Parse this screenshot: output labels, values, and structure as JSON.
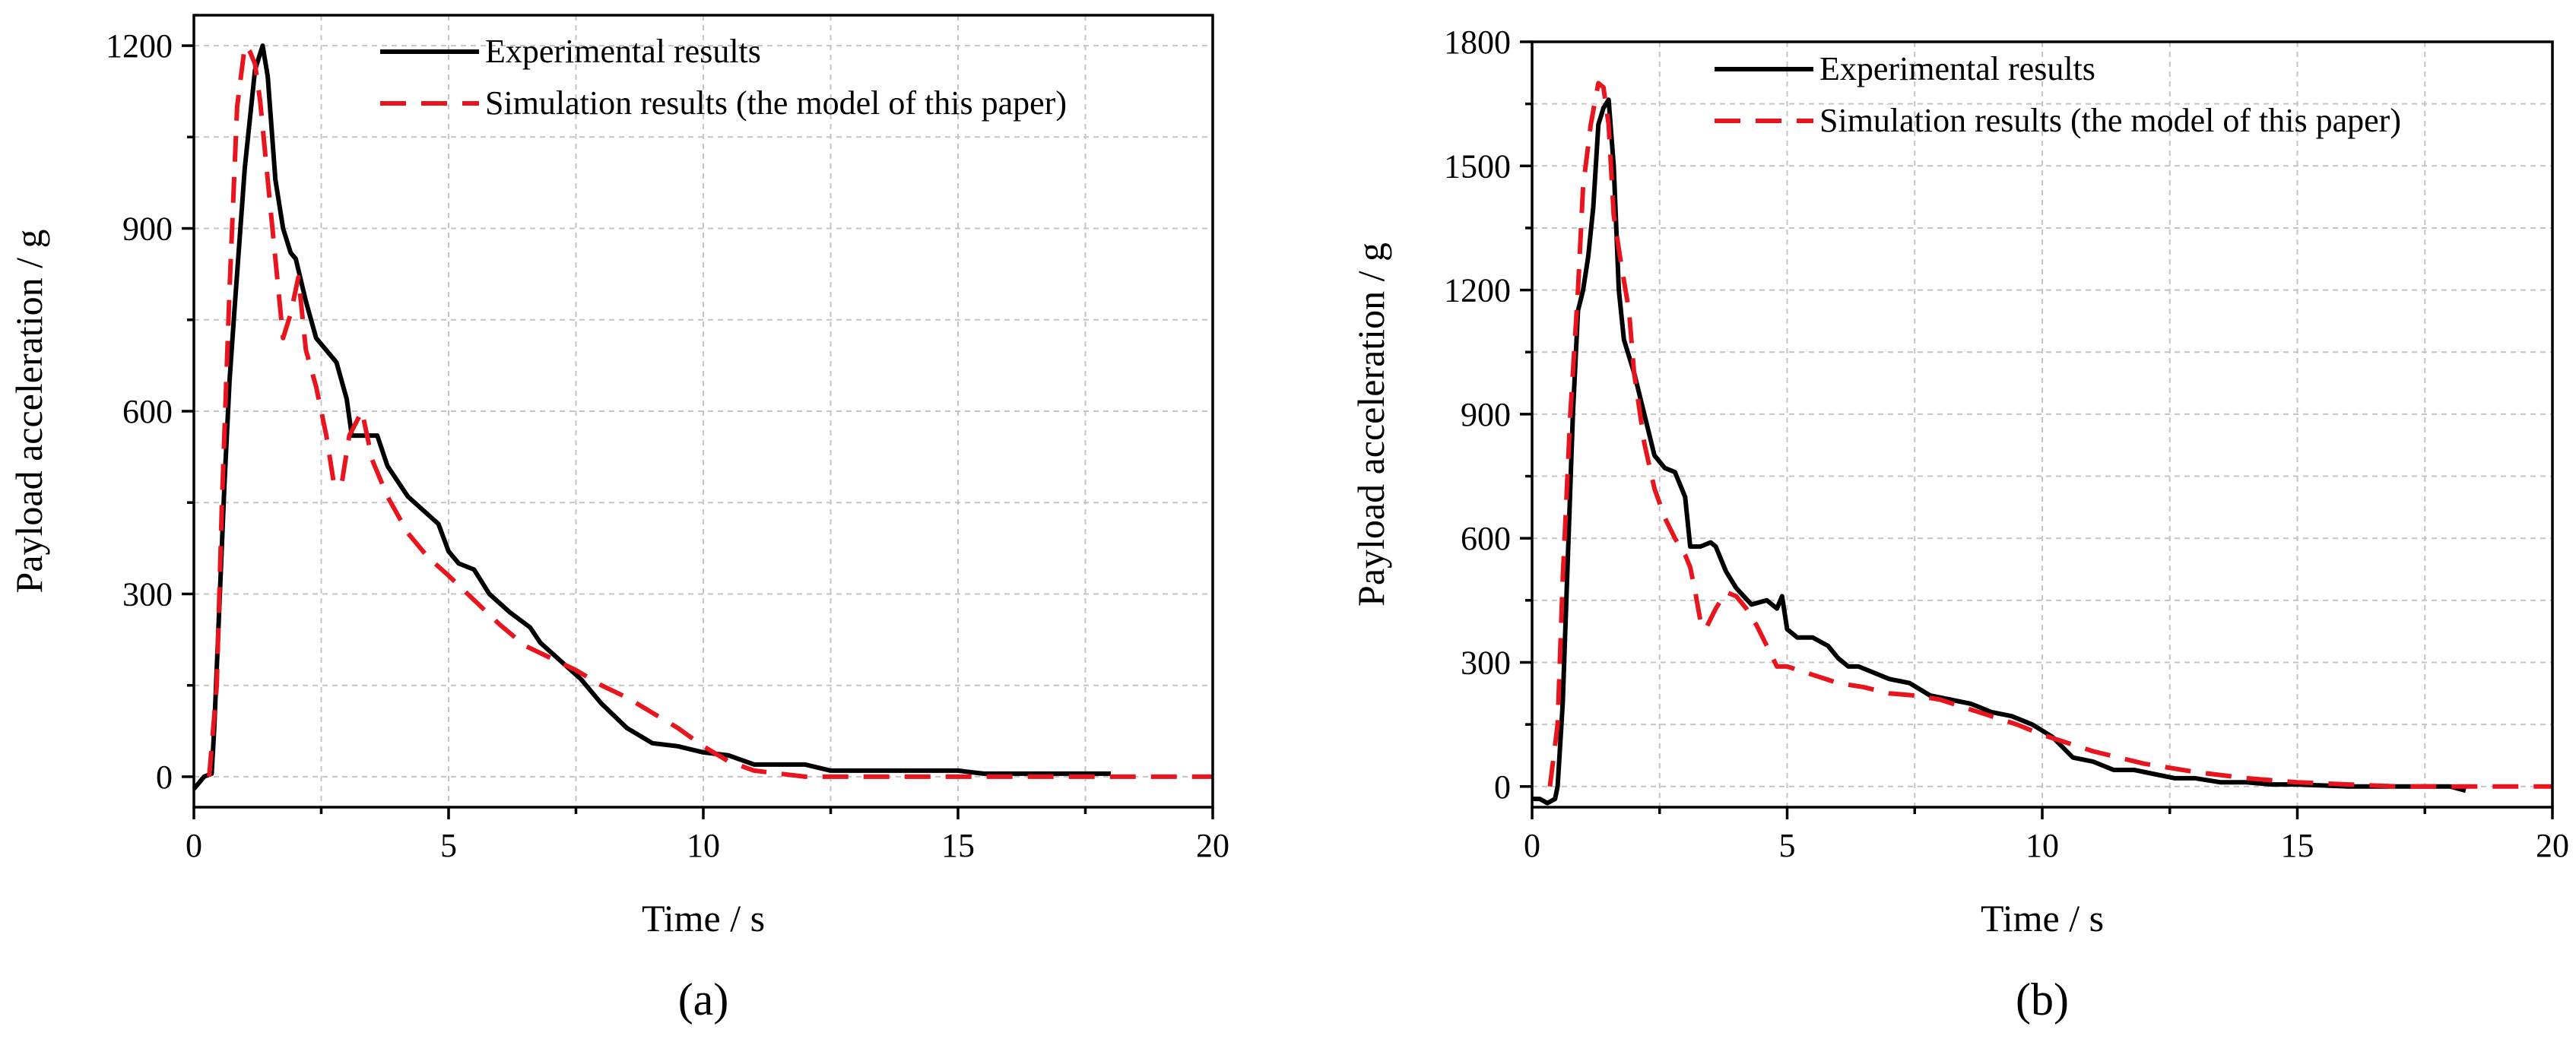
{
  "colors": {
    "experimental": "#000000",
    "simulation": "#e8141e",
    "grid": "#c4c4c4"
  },
  "chart_data": [
    {
      "type": "line",
      "panel_label": "(a)",
      "xlabel": "Time / s",
      "ylabel": "Payload acceleration / g",
      "xlim": [
        0,
        20
      ],
      "ylim": [
        -50,
        1250
      ],
      "xticks": [
        0,
        5,
        10,
        15,
        20
      ],
      "yticks": [
        0,
        300,
        600,
        900,
        1200
      ],
      "grid": true,
      "legend_position": "top-right",
      "series": [
        {
          "name": "Experimental results",
          "style": "solid",
          "color": "#000000",
          "x": [
            0,
            0.2,
            0.35,
            0.4,
            0.5,
            0.6,
            0.7,
            0.8,
            1.0,
            1.2,
            1.35,
            1.45,
            1.6,
            1.75,
            1.9,
            2.0,
            2.2,
            2.4,
            2.6,
            2.8,
            3.0,
            3.1,
            3.3,
            3.6,
            3.8,
            4.2,
            4.6,
            4.8,
            5.0,
            5.2,
            5.5,
            5.8,
            6.2,
            6.6,
            6.8,
            7.2,
            7.6,
            8.0,
            8.5,
            9.0,
            9.5,
            10.0,
            10.5,
            11.0,
            11.3,
            11.6,
            12.0,
            12.5,
            13.0,
            13.5,
            14.0,
            14.5,
            15.0,
            15.5,
            16.0,
            17.0,
            18.0
          ],
          "y": [
            -20,
            0,
            5,
            80,
            280,
            480,
            650,
            770,
            1000,
            1160,
            1200,
            1150,
            980,
            900,
            860,
            850,
            780,
            720,
            700,
            680,
            620,
            560,
            560,
            560,
            510,
            460,
            430,
            415,
            370,
            350,
            340,
            300,
            270,
            245,
            220,
            190,
            160,
            120,
            80,
            55,
            50,
            40,
            35,
            20,
            20,
            20,
            20,
            10,
            10,
            10,
            10,
            10,
            10,
            5,
            5,
            5,
            5
          ]
        },
        {
          "name": "Simulation results (the model of this paper)",
          "style": "dashed",
          "color": "#e8141e",
          "x": [
            0.3,
            0.45,
            0.55,
            0.7,
            0.85,
            1.0,
            1.1,
            1.2,
            1.3,
            1.45,
            1.6,
            1.75,
            1.9,
            2.05,
            2.2,
            2.4,
            2.6,
            2.75,
            2.9,
            3.05,
            3.3,
            3.5,
            3.8,
            4.2,
            4.6,
            5.0,
            5.5,
            6.0,
            6.5,
            7.0,
            7.5,
            8.0,
            8.5,
            9.0,
            9.5,
            10.0,
            10.5,
            11.0,
            11.5,
            12.0,
            13.0,
            14.0,
            15.0,
            16.0,
            17.0,
            18.0,
            19.0,
            20.0
          ],
          "y": [
            0,
            150,
            450,
            800,
            1100,
            1200,
            1190,
            1170,
            1110,
            980,
            850,
            720,
            760,
            820,
            700,
            640,
            560,
            480,
            480,
            560,
            600,
            520,
            460,
            400,
            360,
            330,
            290,
            250,
            215,
            195,
            175,
            150,
            130,
            105,
            80,
            50,
            25,
            10,
            5,
            0,
            0,
            0,
            0,
            0,
            0,
            0,
            0,
            0
          ]
        }
      ]
    },
    {
      "type": "line",
      "panel_label": "(b)",
      "xlabel": "Time / s",
      "ylabel": "Payload acceleration / g",
      "xlim": [
        0,
        20
      ],
      "ylim": [
        -50,
        1800
      ],
      "xticks": [
        0,
        5,
        10,
        15,
        20
      ],
      "yticks": [
        0,
        300,
        600,
        900,
        1200,
        1500,
        1800
      ],
      "grid": true,
      "legend_position": "top-right",
      "series": [
        {
          "name": "Experimental results",
          "style": "solid",
          "color": "#000000",
          "x": [
            0,
            0.15,
            0.3,
            0.45,
            0.5,
            0.6,
            0.7,
            0.8,
            0.9,
            1.0,
            1.1,
            1.2,
            1.3,
            1.4,
            1.5,
            1.6,
            1.7,
            1.8,
            2.0,
            2.2,
            2.4,
            2.6,
            2.8,
            3.0,
            3.1,
            3.3,
            3.5,
            3.6,
            3.8,
            4.0,
            4.3,
            4.6,
            4.8,
            4.9,
            5.0,
            5.2,
            5.5,
            5.8,
            6.0,
            6.2,
            6.4,
            6.6,
            7.0,
            7.4,
            7.8,
            8.2,
            8.6,
            9.0,
            9.4,
            9.8,
            10.2,
            10.6,
            11.0,
            11.4,
            11.8,
            12.2,
            12.6,
            13.0,
            13.5,
            14.0,
            14.5,
            15.0,
            16.0,
            17.0,
            18.0,
            18.3
          ],
          "y": [
            -30,
            -30,
            -40,
            -30,
            0,
            200,
            550,
            900,
            1150,
            1200,
            1280,
            1400,
            1600,
            1640,
            1660,
            1500,
            1200,
            1080,
            1000,
            900,
            800,
            770,
            760,
            700,
            580,
            580,
            590,
            580,
            520,
            480,
            440,
            450,
            430,
            460,
            380,
            360,
            360,
            340,
            310,
            290,
            290,
            280,
            260,
            250,
            220,
            210,
            200,
            180,
            170,
            150,
            120,
            70,
            60,
            40,
            40,
            30,
            20,
            20,
            10,
            10,
            5,
            5,
            0,
            0,
            0,
            -10
          ]
        },
        {
          "name": "Simulation results (the model of this paper)",
          "style": "dashed",
          "color": "#e8141e",
          "x": [
            0.35,
            0.5,
            0.6,
            0.75,
            0.9,
            1.0,
            1.15,
            1.3,
            1.4,
            1.5,
            1.6,
            1.75,
            1.9,
            2.0,
            2.2,
            2.4,
            2.6,
            2.8,
            3.0,
            3.1,
            3.2,
            3.3,
            3.4,
            3.6,
            3.8,
            4.0,
            4.2,
            4.4,
            4.6,
            4.8,
            5.0,
            5.5,
            6.0,
            6.5,
            7.0,
            7.5,
            8.0,
            8.5,
            9.0,
            9.5,
            10.0,
            11.0,
            12.0,
            13.0,
            14.0,
            15.0,
            16.0,
            17.0,
            18.0,
            19.0,
            20.0
          ],
          "y": [
            0,
            150,
            500,
            900,
            1200,
            1450,
            1600,
            1700,
            1690,
            1600,
            1380,
            1260,
            1150,
            1000,
            830,
            720,
            650,
            600,
            560,
            530,
            470,
            400,
            380,
            430,
            470,
            460,
            430,
            390,
            340,
            290,
            290,
            270,
            250,
            240,
            225,
            220,
            210,
            190,
            170,
            150,
            125,
            85,
            55,
            35,
            20,
            10,
            5,
            0,
            0,
            0,
            0
          ]
        }
      ]
    }
  ]
}
